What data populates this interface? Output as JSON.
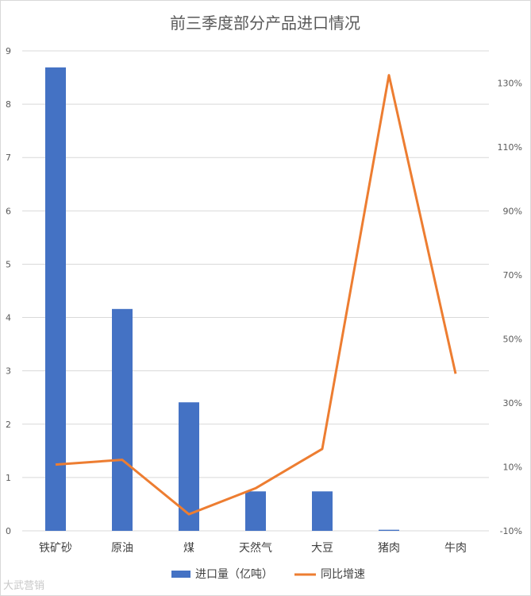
{
  "chart_data": {
    "type": "bar",
    "title": "前三季度部分产品进口情况",
    "categories": [
      "铁矿砂",
      "原油",
      "煤",
      "天然气",
      "大豆",
      "猪肉",
      "牛肉"
    ],
    "series": [
      {
        "name": "进口量（亿吨）",
        "type": "bar",
        "axis": "left",
        "color": "#4472C4",
        "values": [
          8.69,
          4.16,
          2.41,
          0.74,
          0.74,
          0.02,
          0.0
        ]
      },
      {
        "name": "同比增速",
        "type": "line",
        "axis": "right",
        "color": "#ED7D31",
        "values": [
          10.7,
          12.2,
          -4.8,
          3.3,
          15.6,
          132.4,
          39.1
        ]
      }
    ],
    "y_left": {
      "min": 0,
      "max": 9,
      "ticks": [
        0,
        1,
        2,
        3,
        4,
        5,
        6,
        7,
        8,
        9
      ]
    },
    "y_right": {
      "min": -10,
      "max": 140,
      "ticks": [
        -10,
        10,
        30,
        50,
        70,
        90,
        110,
        130
      ],
      "unit": "%"
    },
    "grid": true,
    "legend_position": "bottom"
  },
  "watermark": "大武营销"
}
